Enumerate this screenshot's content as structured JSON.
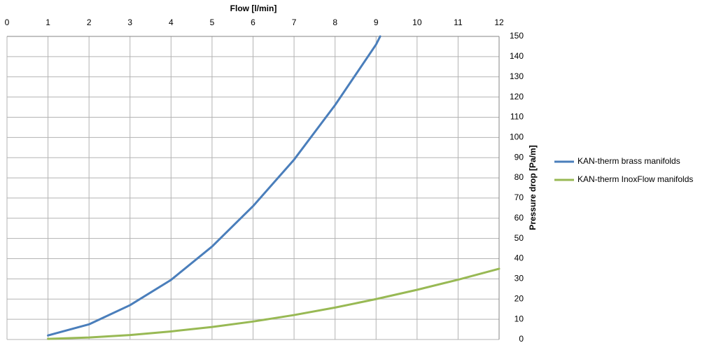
{
  "chart_data": {
    "type": "line",
    "x_label": "Flow [l/min]",
    "y_label": "Pressure drop [Pa/m]",
    "xlim": [
      0,
      12
    ],
    "xticks": [
      0,
      1,
      2,
      3,
      4,
      5,
      6,
      7,
      8,
      9,
      10,
      11,
      12
    ],
    "ylim": [
      0,
      150
    ],
    "yticks": [
      0,
      10,
      20,
      30,
      40,
      50,
      60,
      70,
      80,
      90,
      100,
      110,
      120,
      130,
      140,
      150
    ],
    "grid": true,
    "legend": "right",
    "series": [
      {
        "name": "KAN-therm brass manifolds",
        "color": "#4a7ebb",
        "x": [
          1,
          2,
          3,
          4,
          5,
          6,
          7,
          8,
          9,
          9.1
        ],
        "values": [
          2,
          7.5,
          17,
          29.5,
          46,
          66,
          89,
          116,
          146,
          150
        ]
      },
      {
        "name": "KAN-therm InoxFlow manifolds",
        "color": "#98b954",
        "x": [
          1,
          2,
          3,
          4,
          5,
          6,
          7,
          8,
          9,
          10,
          11,
          12
        ],
        "values": [
          0.3,
          1,
          2.2,
          4,
          6.2,
          8.9,
          12.1,
          15.8,
          20,
          24.6,
          29.6,
          35
        ]
      }
    ]
  }
}
